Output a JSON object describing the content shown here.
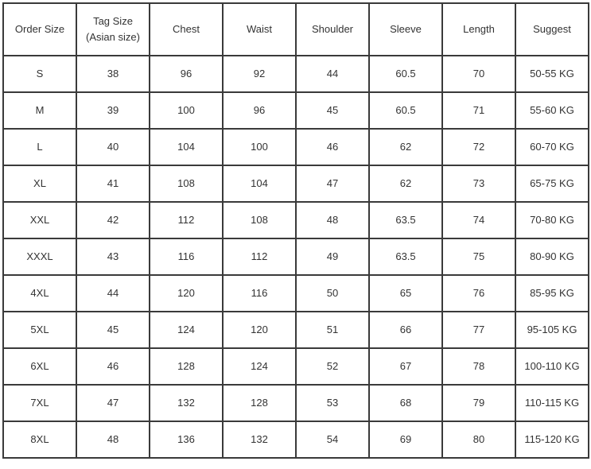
{
  "table": {
    "headers": [
      "Order Size",
      "Tag Size\n(Asian size)",
      "Chest",
      "Waist",
      "Shoulder",
      "Sleeve",
      "Length",
      "Suggest"
    ],
    "rows": [
      [
        "S",
        "38",
        "96",
        "92",
        "44",
        "60.5",
        "70",
        "50-55 KG"
      ],
      [
        "M",
        "39",
        "100",
        "96",
        "45",
        "60.5",
        "71",
        "55-60 KG"
      ],
      [
        "L",
        "40",
        "104",
        "100",
        "46",
        "62",
        "72",
        "60-70 KG"
      ],
      [
        "XL",
        "41",
        "108",
        "104",
        "47",
        "62",
        "73",
        "65-75 KG"
      ],
      [
        "XXL",
        "42",
        "112",
        "108",
        "48",
        "63.5",
        "74",
        "70-80 KG"
      ],
      [
        "XXXL",
        "43",
        "116",
        "112",
        "49",
        "63.5",
        "75",
        "80-90 KG"
      ],
      [
        "4XL",
        "44",
        "120",
        "116",
        "50",
        "65",
        "76",
        "85-95 KG"
      ],
      [
        "5XL",
        "45",
        "124",
        "120",
        "51",
        "66",
        "77",
        "95-105 KG"
      ],
      [
        "6XL",
        "46",
        "128",
        "124",
        "52",
        "67",
        "78",
        "100-110 KG"
      ],
      [
        "7XL",
        "47",
        "132",
        "128",
        "53",
        "68",
        "79",
        "110-115 KG"
      ],
      [
        "8XL",
        "48",
        "136",
        "132",
        "54",
        "69",
        "80",
        "115-120 KG"
      ]
    ]
  }
}
